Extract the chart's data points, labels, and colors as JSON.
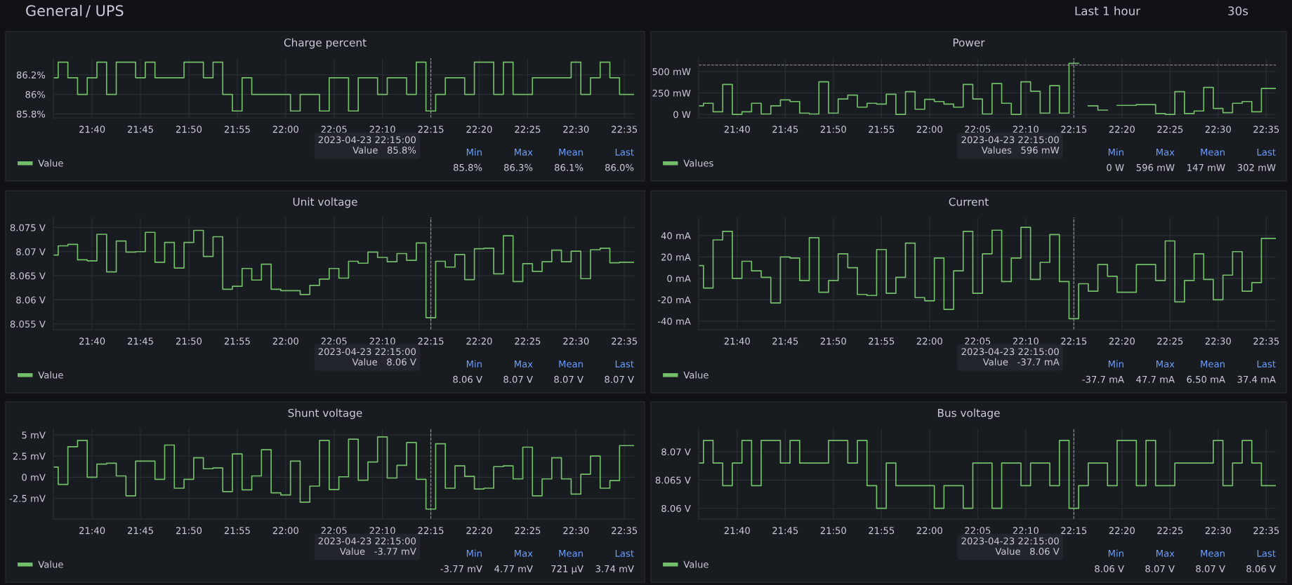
{
  "chart_data": [
    {
      "type": "other",
      "annotations": [
        "General",
        "/ UPS",
        "Last 1 hour",
        "30s"
      ]
    },
    {
      "type": "step",
      "title": "Charge percent",
      "x": [
        "2023-04-23T21:36",
        "2023-04-23T21:37",
        "2023-04-23T21:38",
        "2023-04-23T21:39",
        "2023-04-23T21:40",
        "2023-04-23T21:41",
        "2023-04-23T21:42",
        "2023-04-23T21:43",
        "2023-04-23T21:44",
        "2023-04-23T21:45",
        "2023-04-23T21:46",
        "2023-04-23T21:47",
        "2023-04-23T21:48",
        "2023-04-23T21:49",
        "2023-04-23T21:50",
        "2023-04-23T21:51",
        "2023-04-23T21:52",
        "2023-04-23T21:53",
        "2023-04-23T21:54",
        "2023-04-23T21:55",
        "2023-04-23T21:56",
        "2023-04-23T21:57",
        "2023-04-23T21:58",
        "2023-04-23T21:59",
        "2023-04-23T22:00",
        "2023-04-23T22:01",
        "2023-04-23T22:02",
        "2023-04-23T22:03",
        "2023-04-23T22:04",
        "2023-04-23T22:05",
        "2023-04-23T22:06",
        "2023-04-23T22:07",
        "2023-04-23T22:08",
        "2023-04-23T22:09",
        "2023-04-23T22:10",
        "2023-04-23T22:11",
        "2023-04-23T22:12",
        "2023-04-23T22:13",
        "2023-04-23T22:14",
        "2023-04-23T22:15",
        "2023-04-23T22:16",
        "2023-04-23T22:17",
        "2023-04-23T22:18",
        "2023-04-23T22:19",
        "2023-04-23T22:20",
        "2023-04-23T22:21",
        "2023-04-23T22:22",
        "2023-04-23T22:23",
        "2023-04-23T22:24",
        "2023-04-23T22:25",
        "2023-04-23T22:26",
        "2023-04-23T22:27",
        "2023-04-23T22:28",
        "2023-04-23T22:29",
        "2023-04-23T22:30",
        "2023-04-23T22:31",
        "2023-04-23T22:32",
        "2023-04-23T22:33",
        "2023-04-23T22:34",
        "2023-04-23T22:35",
        "2023-04-23T22:36"
      ],
      "series": [
        {
          "name": "Value",
          "color": "#73bf69",
          "values": [
            86.17,
            86.33,
            86.17,
            86.0,
            86.17,
            86.33,
            86.0,
            86.33,
            86.33,
            86.17,
            86.33,
            86.17,
            86.17,
            86.17,
            86.33,
            86.33,
            86.17,
            86.33,
            86.0,
            85.83,
            86.17,
            86.0,
            86.0,
            86.0,
            86.0,
            85.83,
            86.0,
            86.0,
            85.83,
            86.17,
            86.17,
            85.83,
            86.17,
            86.17,
            86.0,
            86.17,
            86.17,
            86.0,
            86.33,
            85.83,
            86.0,
            86.17,
            86.17,
            86.0,
            86.33,
            86.33,
            86.0,
            86.33,
            86.0,
            86.0,
            86.17,
            86.17,
            86.17,
            86.17,
            86.33,
            86.0,
            86.17,
            86.33,
            86.17,
            86.0,
            86.0
          ]
        }
      ],
      "xlim": [
        "2023-04-23T21:36",
        "2023-04-23T22:36"
      ],
      "xticks": [
        {
          "value": "2023-04-23T21:40",
          "label": "21:40"
        },
        {
          "value": "2023-04-23T21:45",
          "label": "21:45"
        },
        {
          "value": "2023-04-23T21:50",
          "label": "21:50"
        },
        {
          "value": "2023-04-23T21:55",
          "label": "21:55"
        },
        {
          "value": "2023-04-23T22:00",
          "label": "22:00"
        },
        {
          "value": "2023-04-23T22:05",
          "label": "22:05"
        },
        {
          "value": "2023-04-23T22:10",
          "label": "22:10"
        },
        {
          "value": "2023-04-23T22:15",
          "label": "22:15"
        },
        {
          "value": "2023-04-23T22:20",
          "label": "22:20"
        },
        {
          "value": "2023-04-23T22:25",
          "label": "22:25"
        },
        {
          "value": "2023-04-23T22:30",
          "label": "22:30"
        },
        {
          "value": "2023-04-23T22:35",
          "label": "22:35"
        }
      ],
      "ylim": [
        85.76,
        86.37
      ],
      "yticks": [
        {
          "value": 85.8,
          "label": "85.8%"
        },
        {
          "value": 86,
          "label": "86%"
        },
        {
          "value": 86.2,
          "label": "86.2%"
        }
      ],
      "ref_lines": [
        {
          "axis": "x",
          "value": "2023-04-23T22:15",
          "line_style": "dashed"
        }
      ],
      "annotations": [
        "2023-04-23 22:15:00\nValue   85.8%",
        "Min",
        "Max",
        "Mean",
        "Last",
        "85.8%",
        "86.3%",
        "86.1%",
        "86.0%"
      ],
      "grid": true,
      "legend": "bottom left",
      "marker": "none",
      "line_style": "solid"
    },
    {
      "type": "step",
      "title": "Power",
      "x": [
        "2023-04-23T21:36",
        "2023-04-23T21:37",
        "2023-04-23T21:38",
        "2023-04-23T21:39",
        "2023-04-23T21:40",
        "2023-04-23T21:41",
        "2023-04-23T21:42",
        "2023-04-23T21:43",
        "2023-04-23T21:44",
        "2023-04-23T21:45",
        "2023-04-23T21:46",
        "2023-04-23T21:47",
        "2023-04-23T21:48",
        "2023-04-23T21:49",
        "2023-04-23T21:50",
        "2023-04-23T21:51",
        "2023-04-23T21:52",
        "2023-04-23T21:53",
        "2023-04-23T21:54",
        "2023-04-23T21:55",
        "2023-04-23T21:56",
        "2023-04-23T21:57",
        "2023-04-23T21:58",
        "2023-04-23T21:59",
        "2023-04-23T22:00",
        "2023-04-23T22:01",
        "2023-04-23T22:02",
        "2023-04-23T22:03",
        "2023-04-23T22:04",
        "2023-04-23T22:05",
        "2023-04-23T22:06",
        "2023-04-23T22:07",
        "2023-04-23T22:08",
        "2023-04-23T22:09",
        "2023-04-23T22:10",
        "2023-04-23T22:11",
        "2023-04-23T22:12",
        "2023-04-23T22:13",
        "2023-04-23T22:14",
        "2023-04-23T22:15",
        "2023-04-23T22:16",
        "2023-04-23T22:17",
        "2023-04-23T22:18",
        "2023-04-23T22:19",
        "2023-04-23T22:20",
        "2023-04-23T22:21",
        "2023-04-23T22:22",
        "2023-04-23T22:23",
        "2023-04-23T22:24",
        "2023-04-23T22:25",
        "2023-04-23T22:26",
        "2023-04-23T22:27",
        "2023-04-23T22:28",
        "2023-04-23T22:29",
        "2023-04-23T22:30",
        "2023-04-23T22:31",
        "2023-04-23T22:32",
        "2023-04-23T22:33",
        "2023-04-23T22:34",
        "2023-04-23T22:35",
        "2023-04-23T22:36"
      ],
      "series": [
        {
          "name": "Values",
          "color": "#73bf69",
          "values": [
            100,
            130,
            30,
            350,
            0,
            30,
            130,
            5,
            100,
            170,
            150,
            15,
            5,
            380,
            15,
            180,
            225,
            85,
            130,
            120,
            235,
            0,
            265,
            60,
            175,
            150,
            120,
            85,
            350,
            180,
            5,
            360,
            130,
            0,
            380,
            270,
            15,
            335,
            15,
            596,
            null,
            100,
            50,
            null,
            105,
            105,
            115,
            115,
            10,
            0,
            265,
            10,
            40,
            315,
            70,
            20,
            130,
            150,
            30,
            302,
            302
          ]
        }
      ],
      "xlim": [
        "2023-04-23T21:36",
        "2023-04-23T22:36"
      ],
      "xticks": [
        {
          "value": "2023-04-23T21:40",
          "label": "21:40"
        },
        {
          "value": "2023-04-23T21:45",
          "label": "21:45"
        },
        {
          "value": "2023-04-23T21:50",
          "label": "21:50"
        },
        {
          "value": "2023-04-23T21:55",
          "label": "21:55"
        },
        {
          "value": "2023-04-23T22:00",
          "label": "22:00"
        },
        {
          "value": "2023-04-23T22:05",
          "label": "22:05"
        },
        {
          "value": "2023-04-23T22:10",
          "label": "22:10"
        },
        {
          "value": "2023-04-23T22:15",
          "label": "22:15"
        },
        {
          "value": "2023-04-23T22:20",
          "label": "22:20"
        },
        {
          "value": "2023-04-23T22:25",
          "label": "22:25"
        },
        {
          "value": "2023-04-23T22:30",
          "label": "22:30"
        },
        {
          "value": "2023-04-23T22:35",
          "label": "22:35"
        }
      ],
      "ylim": [
        -40,
        655
      ],
      "yticks": [
        {
          "value": 0,
          "label": "0 W"
        },
        {
          "value": 250,
          "label": "250 mW"
        },
        {
          "value": 500,
          "label": "500 mW"
        }
      ],
      "ref_lines": [
        {
          "axis": "x",
          "value": "2023-04-23T22:15",
          "line_style": "dashed"
        },
        {
          "axis": "y",
          "value": 575,
          "line_style": "dashed"
        }
      ],
      "annotations": [
        "2023-04-23 22:15:00\nValues   596 mW",
        "Min",
        "Max",
        "Mean",
        "Last",
        "0 W",
        "596 mW",
        "147 mW",
        "302 mW"
      ],
      "grid": true,
      "legend": "bottom left",
      "marker": "none",
      "line_style": "solid"
    },
    {
      "type": "step",
      "title": "Unit voltage",
      "x": [
        "2023-04-23T21:36",
        "2023-04-23T21:37",
        "2023-04-23T21:38",
        "2023-04-23T21:39",
        "2023-04-23T21:40",
        "2023-04-23T21:41",
        "2023-04-23T21:42",
        "2023-04-23T21:43",
        "2023-04-23T21:44",
        "2023-04-23T21:45",
        "2023-04-23T21:46",
        "2023-04-23T21:47",
        "2023-04-23T21:48",
        "2023-04-23T21:49",
        "2023-04-23T21:50",
        "2023-04-23T21:51",
        "2023-04-23T21:52",
        "2023-04-23T21:53",
        "2023-04-23T21:54",
        "2023-04-23T21:55",
        "2023-04-23T21:56",
        "2023-04-23T21:57",
        "2023-04-23T21:58",
        "2023-04-23T21:59",
        "2023-04-23T22:00",
        "2023-04-23T22:01",
        "2023-04-23T22:02",
        "2023-04-23T22:03",
        "2023-04-23T22:04",
        "2023-04-23T22:05",
        "2023-04-23T22:06",
        "2023-04-23T22:07",
        "2023-04-23T22:08",
        "2023-04-23T22:09",
        "2023-04-23T22:10",
        "2023-04-23T22:11",
        "2023-04-23T22:12",
        "2023-04-23T22:13",
        "2023-04-23T22:14",
        "2023-04-23T22:15",
        "2023-04-23T22:16",
        "2023-04-23T22:17",
        "2023-04-23T22:18",
        "2023-04-23T22:19",
        "2023-04-23T22:20",
        "2023-04-23T22:21",
        "2023-04-23T22:22",
        "2023-04-23T22:23",
        "2023-04-23T22:24",
        "2023-04-23T22:25",
        "2023-04-23T22:26",
        "2023-04-23T22:27",
        "2023-04-23T22:28",
        "2023-04-23T22:29",
        "2023-04-23T22:30",
        "2023-04-23T22:31",
        "2023-04-23T22:32",
        "2023-04-23T22:33",
        "2023-04-23T22:34",
        "2023-04-23T22:35",
        "2023-04-23T22:36"
      ],
      "series": [
        {
          "name": "Value",
          "color": "#73bf69",
          "values": [
            8.0693,
            8.0712,
            8.0715,
            8.0683,
            8.0681,
            8.0736,
            8.0658,
            8.0722,
            8.0699,
            8.07,
            8.074,
            8.0678,
            8.0719,
            8.0666,
            8.0719,
            8.0744,
            8.069,
            8.0731,
            8.0622,
            8.0628,
            8.0665,
            8.0641,
            8.0674,
            8.0622,
            8.0619,
            8.0619,
            8.0611,
            8.063,
            8.0643,
            8.0665,
            8.0645,
            8.068,
            8.0676,
            8.0699,
            8.0688,
            8.0679,
            8.0696,
            8.0682,
            8.0718,
            8.0563,
            8.068,
            8.0668,
            8.0694,
            8.0642,
            8.0706,
            8.0707,
            8.0654,
            8.0733,
            8.0638,
            8.0675,
            8.0659,
            8.0679,
            8.0703,
            8.0679,
            8.0701,
            8.0644,
            8.0704,
            8.0707,
            8.0677,
            8.0678,
            8.0678
          ]
        }
      ],
      "xlim": [
        "2023-04-23T21:36",
        "2023-04-23T22:36"
      ],
      "xticks": [
        {
          "value": "2023-04-23T21:40",
          "label": "21:40"
        },
        {
          "value": "2023-04-23T21:45",
          "label": "21:45"
        },
        {
          "value": "2023-04-23T21:50",
          "label": "21:50"
        },
        {
          "value": "2023-04-23T21:55",
          "label": "21:55"
        },
        {
          "value": "2023-04-23T22:00",
          "label": "22:00"
        },
        {
          "value": "2023-04-23T22:05",
          "label": "22:05"
        },
        {
          "value": "2023-04-23T22:10",
          "label": "22:10"
        },
        {
          "value": "2023-04-23T22:15",
          "label": "22:15"
        },
        {
          "value": "2023-04-23T22:20",
          "label": "22:20"
        },
        {
          "value": "2023-04-23T22:25",
          "label": "22:25"
        },
        {
          "value": "2023-04-23T22:30",
          "label": "22:30"
        },
        {
          "value": "2023-04-23T22:35",
          "label": "22:35"
        }
      ],
      "ylim": [
        8.0538,
        8.0771
      ],
      "yticks": [
        {
          "value": 8.055,
          "label": "8.055 V"
        },
        {
          "value": 8.06,
          "label": "8.06 V"
        },
        {
          "value": 8.065,
          "label": "8.065 V"
        },
        {
          "value": 8.07,
          "label": "8.07 V"
        },
        {
          "value": 8.075,
          "label": "8.075 V"
        }
      ],
      "ref_lines": [
        {
          "axis": "x",
          "value": "2023-04-23T22:15",
          "line_style": "dashed"
        }
      ],
      "annotations": [
        "2023-04-23 22:15:00\nValue   8.06 V",
        "Min",
        "Max",
        "Mean",
        "Last",
        "8.06 V",
        "8.07 V",
        "8.07 V",
        "8.07 V"
      ],
      "grid": true,
      "legend": "bottom left",
      "marker": "none",
      "line_style": "solid"
    },
    {
      "type": "step",
      "title": "Current",
      "x": [
        "2023-04-23T21:36",
        "2023-04-23T21:37",
        "2023-04-23T21:38",
        "2023-04-23T21:39",
        "2023-04-23T21:40",
        "2023-04-23T21:41",
        "2023-04-23T21:42",
        "2023-04-23T21:43",
        "2023-04-23T21:44",
        "2023-04-23T21:45",
        "2023-04-23T21:46",
        "2023-04-23T21:47",
        "2023-04-23T21:48",
        "2023-04-23T21:49",
        "2023-04-23T21:50",
        "2023-04-23T21:51",
        "2023-04-23T21:52",
        "2023-04-23T21:53",
        "2023-04-23T21:54",
        "2023-04-23T21:55",
        "2023-04-23T21:56",
        "2023-04-23T21:57",
        "2023-04-23T21:58",
        "2023-04-23T21:59",
        "2023-04-23T22:00",
        "2023-04-23T22:01",
        "2023-04-23T22:02",
        "2023-04-23T22:03",
        "2023-04-23T22:04",
        "2023-04-23T22:05",
        "2023-04-23T22:06",
        "2023-04-23T22:07",
        "2023-04-23T22:08",
        "2023-04-23T22:09",
        "2023-04-23T22:10",
        "2023-04-23T22:11",
        "2023-04-23T22:12",
        "2023-04-23T22:13",
        "2023-04-23T22:14",
        "2023-04-23T22:15",
        "2023-04-23T22:16",
        "2023-04-23T22:17",
        "2023-04-23T22:18",
        "2023-04-23T22:19",
        "2023-04-23T22:20",
        "2023-04-23T22:21",
        "2023-04-23T22:22",
        "2023-04-23T22:23",
        "2023-04-23T22:24",
        "2023-04-23T22:25",
        "2023-04-23T22:26",
        "2023-04-23T22:27",
        "2023-04-23T22:28",
        "2023-04-23T22:29",
        "2023-04-23T22:30",
        "2023-04-23T22:31",
        "2023-04-23T22:32",
        "2023-04-23T22:33",
        "2023-04-23T22:34",
        "2023-04-23T22:35",
        "2023-04-23T22:36"
      ],
      "series": [
        {
          "name": "Value",
          "color": "#73bf69",
          "values": [
            12,
            -9,
            36,
            44,
            0,
            16,
            7,
            1,
            -23,
            20,
            19,
            -2,
            38,
            -13,
            -2,
            23,
            10,
            -15,
            -16,
            27,
            -14,
            1,
            33,
            -18,
            -21,
            19,
            -29,
            7,
            44,
            -14,
            23,
            45,
            -3,
            19,
            47.7,
            -1,
            15,
            41,
            -3,
            -37.7,
            -5,
            -12,
            13,
            2,
            -13,
            -13,
            13,
            13,
            -2,
            35,
            -22,
            -2,
            23,
            -1,
            -20,
            3,
            25,
            -12,
            -4,
            37.4,
            37.4
          ]
        }
      ],
      "xlim": [
        "2023-04-23T21:36",
        "2023-04-23T22:36"
      ],
      "xticks": [
        {
          "value": "2023-04-23T21:40",
          "label": "21:40"
        },
        {
          "value": "2023-04-23T21:45",
          "label": "21:45"
        },
        {
          "value": "2023-04-23T21:50",
          "label": "21:50"
        },
        {
          "value": "2023-04-23T21:55",
          "label": "21:55"
        },
        {
          "value": "2023-04-23T22:00",
          "label": "22:00"
        },
        {
          "value": "2023-04-23T22:05",
          "label": "22:05"
        },
        {
          "value": "2023-04-23T22:10",
          "label": "22:10"
        },
        {
          "value": "2023-04-23T22:15",
          "label": "22:15"
        },
        {
          "value": "2023-04-23T22:20",
          "label": "22:20"
        },
        {
          "value": "2023-04-23T22:25",
          "label": "22:25"
        },
        {
          "value": "2023-04-23T22:30",
          "label": "22:30"
        },
        {
          "value": "2023-04-23T22:35",
          "label": "22:35"
        }
      ],
      "ylim": [
        -48,
        57
      ],
      "yticks": [
        {
          "value": -40,
          "label": "-40 mA"
        },
        {
          "value": -20,
          "label": "-20 mA"
        },
        {
          "value": 0,
          "label": "0 mA"
        },
        {
          "value": 20,
          "label": "20 mA"
        },
        {
          "value": 40,
          "label": "40 mA"
        }
      ],
      "ref_lines": [
        {
          "axis": "x",
          "value": "2023-04-23T22:15",
          "line_style": "dashed"
        }
      ],
      "annotations": [
        "2023-04-23 22:15:00\nValue   -37.7 mA",
        "Min",
        "Max",
        "Mean",
        "Last",
        "-37.7 mA",
        "47.7 mA",
        "6.50 mA",
        "37.4 mA"
      ],
      "grid": true,
      "legend": "bottom left",
      "marker": "none",
      "line_style": "solid"
    },
    {
      "type": "step",
      "title": "Shunt voltage",
      "x": [
        "2023-04-23T21:36",
        "2023-04-23T21:37",
        "2023-04-23T21:38",
        "2023-04-23T21:39",
        "2023-04-23T21:40",
        "2023-04-23T21:41",
        "2023-04-23T21:42",
        "2023-04-23T21:43",
        "2023-04-23T21:44",
        "2023-04-23T21:45",
        "2023-04-23T21:46",
        "2023-04-23T21:47",
        "2023-04-23T21:48",
        "2023-04-23T21:49",
        "2023-04-23T21:50",
        "2023-04-23T21:51",
        "2023-04-23T21:52",
        "2023-04-23T21:53",
        "2023-04-23T21:54",
        "2023-04-23T21:55",
        "2023-04-23T21:56",
        "2023-04-23T21:57",
        "2023-04-23T21:58",
        "2023-04-23T21:59",
        "2023-04-23T22:00",
        "2023-04-23T22:01",
        "2023-04-23T22:02",
        "2023-04-23T22:03",
        "2023-04-23T22:04",
        "2023-04-23T22:05",
        "2023-04-23T22:06",
        "2023-04-23T22:07",
        "2023-04-23T22:08",
        "2023-04-23T22:09",
        "2023-04-23T22:10",
        "2023-04-23T22:11",
        "2023-04-23T22:12",
        "2023-04-23T22:13",
        "2023-04-23T22:14",
        "2023-04-23T22:15",
        "2023-04-23T22:16",
        "2023-04-23T22:17",
        "2023-04-23T22:18",
        "2023-04-23T22:19",
        "2023-04-23T22:20",
        "2023-04-23T22:21",
        "2023-04-23T22:22",
        "2023-04-23T22:23",
        "2023-04-23T22:24",
        "2023-04-23T22:25",
        "2023-04-23T22:26",
        "2023-04-23T22:27",
        "2023-04-23T22:28",
        "2023-04-23T22:29",
        "2023-04-23T22:30",
        "2023-04-23T22:31",
        "2023-04-23T22:32",
        "2023-04-23T22:33",
        "2023-04-23T22:34",
        "2023-04-23T22:35",
        "2023-04-23T22:36"
      ],
      "series": [
        {
          "name": "Value",
          "color": "#73bf69",
          "values": [
            1.2,
            -0.85,
            3.6,
            4.35,
            0,
            1.55,
            1.65,
            0.15,
            -2.2,
            1.9,
            1.9,
            -0.25,
            3.8,
            -1.3,
            -0.25,
            2.3,
            1.0,
            1.1,
            -1.7,
            2.75,
            -1.5,
            0.15,
            3.25,
            -1.85,
            -2.1,
            1.9,
            -2.95,
            -1.05,
            4.35,
            -1.45,
            0.05,
            4.5,
            -0.35,
            1.8,
            4.77,
            -0.1,
            1.4,
            4.1,
            -0.25,
            -3.77,
            3.95,
            -1.3,
            1.35,
            0.1,
            -1.4,
            -1.3,
            1.25,
            1.35,
            -0.2,
            3.55,
            -2.2,
            -0.2,
            2.3,
            -0.2,
            -2.0,
            0.35,
            2.5,
            -1.3,
            -0.4,
            3.74,
            3.74
          ]
        }
      ],
      "xlim": [
        "2023-04-23T21:36",
        "2023-04-23T22:36"
      ],
      "xticks": [
        {
          "value": "2023-04-23T21:40",
          "label": "21:40"
        },
        {
          "value": "2023-04-23T21:45",
          "label": "21:45"
        },
        {
          "value": "2023-04-23T21:50",
          "label": "21:50"
        },
        {
          "value": "2023-04-23T21:55",
          "label": "21:55"
        },
        {
          "value": "2023-04-23T22:00",
          "label": "22:00"
        },
        {
          "value": "2023-04-23T22:05",
          "label": "22:05"
        },
        {
          "value": "2023-04-23T22:10",
          "label": "22:10"
        },
        {
          "value": "2023-04-23T22:15",
          "label": "22:15"
        },
        {
          "value": "2023-04-23T22:20",
          "label": "22:20"
        },
        {
          "value": "2023-04-23T22:25",
          "label": "22:25"
        },
        {
          "value": "2023-04-23T22:30",
          "label": "22:30"
        },
        {
          "value": "2023-04-23T22:35",
          "label": "22:35"
        }
      ],
      "ylim": [
        -4.95,
        5.75
      ],
      "yticks": [
        {
          "value": -2.5,
          "label": "-2.5 mV"
        },
        {
          "value": 0,
          "label": "0 mV"
        },
        {
          "value": 2.5,
          "label": "2.5 mV"
        },
        {
          "value": 5,
          "label": "5 mV"
        }
      ],
      "ref_lines": [
        {
          "axis": "x",
          "value": "2023-04-23T22:15",
          "line_style": "dashed"
        }
      ],
      "annotations": [
        "2023-04-23 22:15:00\nValue   -3.77 mV",
        "Min",
        "Max",
        "Mean",
        "Last",
        "-3.77 mV",
        "4.77 mV",
        "721 µV",
        "3.74 mV"
      ],
      "grid": true,
      "legend": "bottom left",
      "marker": "none",
      "line_style": "solid"
    },
    {
      "type": "step",
      "title": "Bus voltage",
      "x": [
        "2023-04-23T21:36",
        "2023-04-23T21:37",
        "2023-04-23T21:38",
        "2023-04-23T21:39",
        "2023-04-23T21:40",
        "2023-04-23T21:41",
        "2023-04-23T21:42",
        "2023-04-23T21:43",
        "2023-04-23T21:44",
        "2023-04-23T21:45",
        "2023-04-23T21:46",
        "2023-04-23T21:47",
        "2023-04-23T21:48",
        "2023-04-23T21:49",
        "2023-04-23T21:50",
        "2023-04-23T21:51",
        "2023-04-23T21:52",
        "2023-04-23T21:53",
        "2023-04-23T21:54",
        "2023-04-23T21:55",
        "2023-04-23T21:56",
        "2023-04-23T21:57",
        "2023-04-23T21:58",
        "2023-04-23T21:59",
        "2023-04-23T22:00",
        "2023-04-23T22:01",
        "2023-04-23T22:02",
        "2023-04-23T22:03",
        "2023-04-23T22:04",
        "2023-04-23T22:05",
        "2023-04-23T22:06",
        "2023-04-23T22:07",
        "2023-04-23T22:08",
        "2023-04-23T22:09",
        "2023-04-23T22:10",
        "2023-04-23T22:11",
        "2023-04-23T22:12",
        "2023-04-23T22:13",
        "2023-04-23T22:14",
        "2023-04-23T22:15",
        "2023-04-23T22:16",
        "2023-04-23T22:17",
        "2023-04-23T22:18",
        "2023-04-23T22:19",
        "2023-04-23T22:20",
        "2023-04-23T22:21",
        "2023-04-23T22:22",
        "2023-04-23T22:23",
        "2023-04-23T22:24",
        "2023-04-23T22:25",
        "2023-04-23T22:26",
        "2023-04-23T22:27",
        "2023-04-23T22:28",
        "2023-04-23T22:29",
        "2023-04-23T22:30",
        "2023-04-23T22:31",
        "2023-04-23T22:32",
        "2023-04-23T22:33",
        "2023-04-23T22:34",
        "2023-04-23T22:35",
        "2023-04-23T22:36"
      ],
      "series": [
        {
          "name": "Value",
          "color": "#73bf69",
          "values": [
            8.068,
            8.072,
            8.068,
            8.064,
            8.068,
            8.072,
            8.064,
            8.072,
            8.072,
            8.068,
            8.072,
            8.068,
            8.068,
            8.068,
            8.072,
            8.072,
            8.068,
            8.072,
            8.064,
            8.06,
            8.068,
            8.064,
            8.064,
            8.064,
            8.064,
            8.06,
            8.064,
            8.064,
            8.06,
            8.068,
            8.068,
            8.06,
            8.068,
            8.068,
            8.064,
            8.068,
            8.068,
            8.064,
            8.072,
            8.06,
            8.064,
            8.068,
            8.068,
            8.064,
            8.072,
            8.072,
            8.064,
            8.072,
            8.064,
            8.064,
            8.068,
            8.068,
            8.068,
            8.068,
            8.072,
            8.064,
            8.068,
            8.072,
            8.068,
            8.064,
            8.064
          ]
        }
      ],
      "xlim": [
        "2023-04-23T21:36",
        "2023-04-23T22:36"
      ],
      "xticks": [
        {
          "value": "2023-04-23T21:40",
          "label": "21:40"
        },
        {
          "value": "2023-04-23T21:45",
          "label": "21:45"
        },
        {
          "value": "2023-04-23T21:50",
          "label": "21:50"
        },
        {
          "value": "2023-04-23T21:55",
          "label": "21:55"
        },
        {
          "value": "2023-04-23T22:00",
          "label": "22:00"
        },
        {
          "value": "2023-04-23T22:05",
          "label": "22:05"
        },
        {
          "value": "2023-04-23T22:10",
          "label": "22:10"
        },
        {
          "value": "2023-04-23T22:15",
          "label": "22:15"
        },
        {
          "value": "2023-04-23T22:20",
          "label": "22:20"
        },
        {
          "value": "2023-04-23T22:25",
          "label": "22:25"
        },
        {
          "value": "2023-04-23T22:30",
          "label": "22:30"
        },
        {
          "value": "2023-04-23T22:35",
          "label": "22:35"
        }
      ],
      "ylim": [
        8.0581,
        8.0741
      ],
      "yticks": [
        {
          "value": 8.06,
          "label": "8.06 V"
        },
        {
          "value": 8.065,
          "label": "8.065 V"
        },
        {
          "value": 8.07,
          "label": "8.07 V"
        }
      ],
      "ref_lines": [
        {
          "axis": "x",
          "value": "2023-04-23T22:15",
          "line_style": "dashed"
        }
      ],
      "annotations": [
        "2023-04-23 22:15:00\nValue   8.06 V",
        "Min",
        "Max",
        "Mean",
        "Last",
        "8.06 V",
        "8.07 V",
        "8.07 V",
        "8.06 V"
      ],
      "grid": true,
      "legend": "bottom left",
      "marker": "none",
      "line_style": "solid"
    }
  ]
}
